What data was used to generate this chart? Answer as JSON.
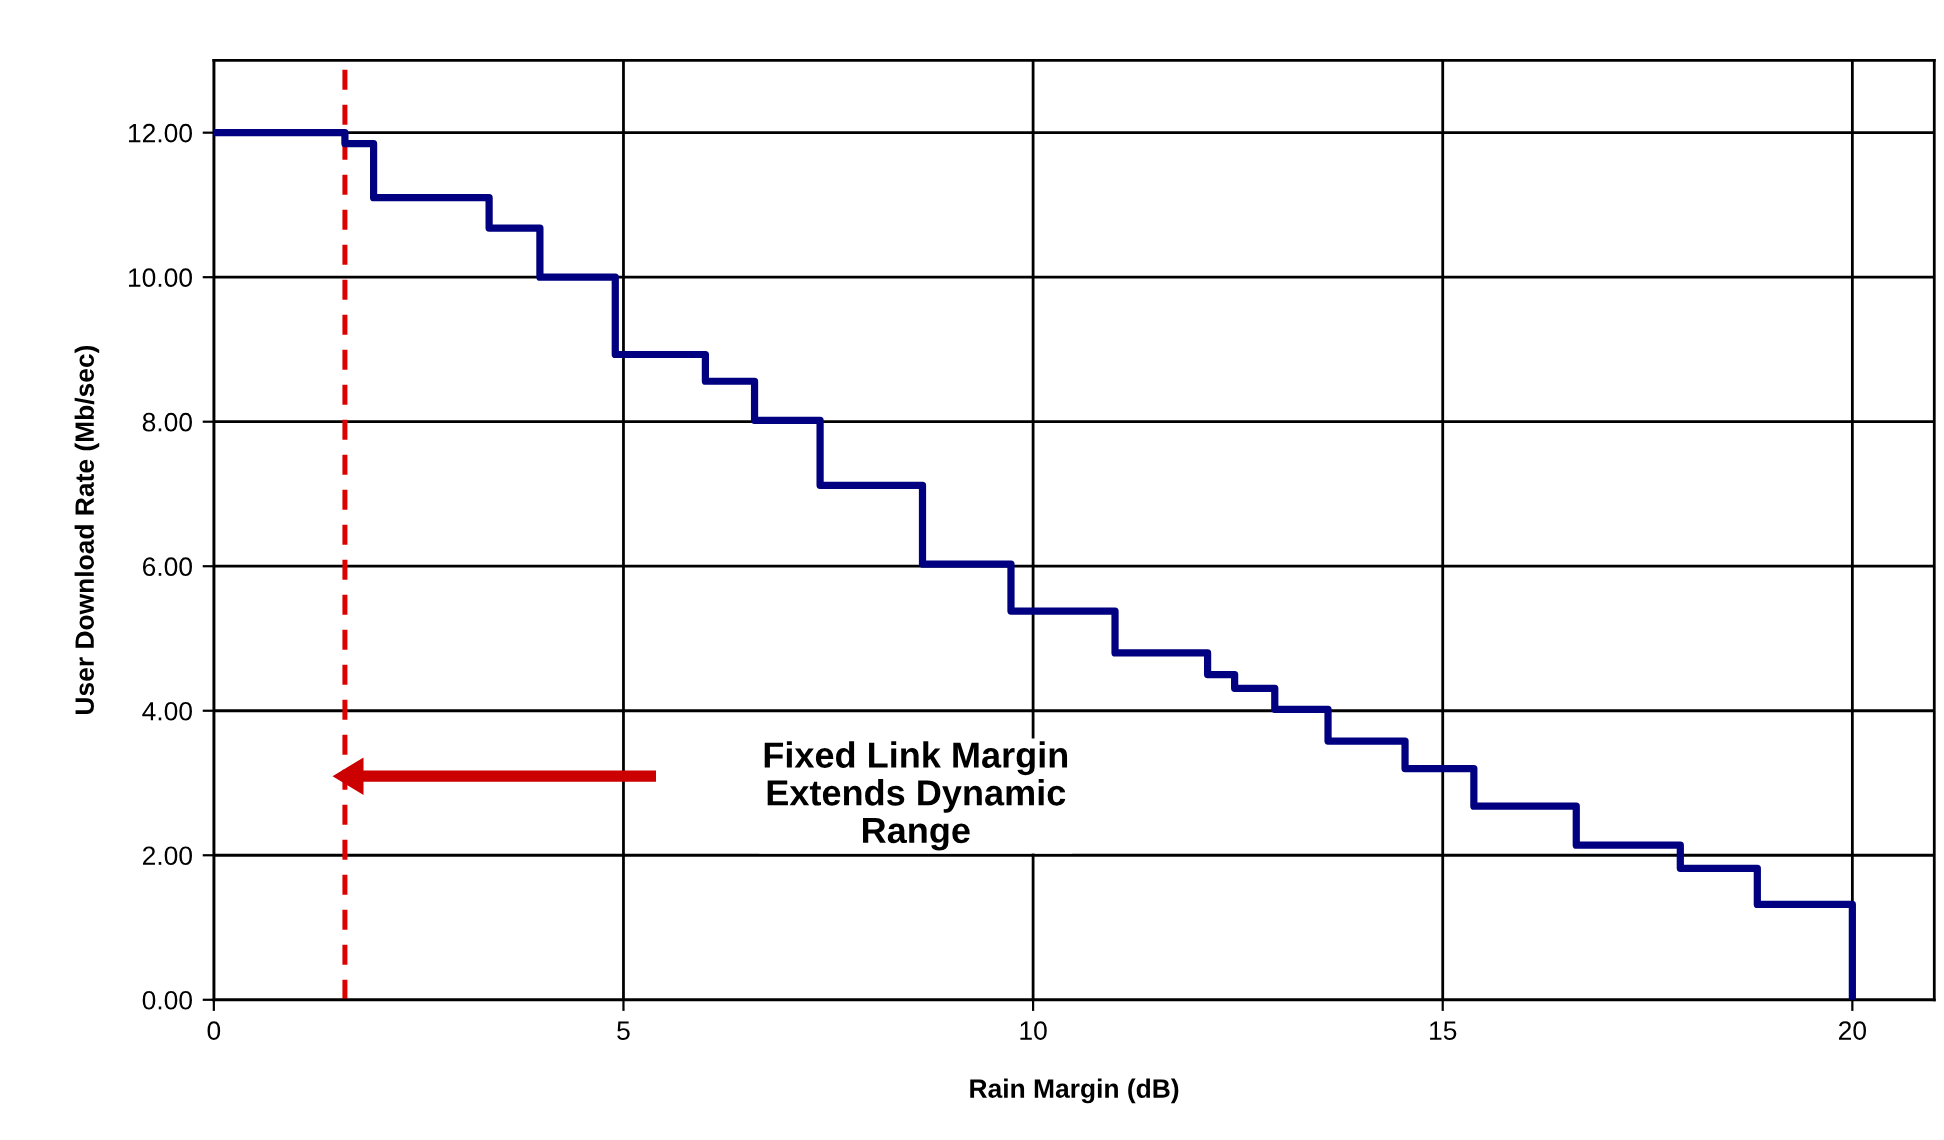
{
  "chart_data": {
    "type": "step",
    "xlabel": "Rain Margin (dB)",
    "ylabel": "User Download Rate (Mb/sec)",
    "x": [
      0,
      1.6,
      1.95,
      3.36,
      3.98,
      4.9,
      6.0,
      6.6,
      7.4,
      8.65,
      9.73,
      11.0,
      12.13,
      12.46,
      12.95,
      13.6,
      14.54,
      15.38,
      16.63,
      17.9,
      18.84,
      20
    ],
    "series": [
      {
        "color": "#000080",
        "values": [
          12,
          11.85,
          11.1,
          10.68,
          10,
          8.93,
          8.56,
          8.02,
          7.12,
          6.03,
          5.38,
          4.8,
          4.5,
          4.31,
          4.02,
          3.58,
          3.2,
          2.68,
          2.14,
          1.82,
          1.32,
          0
        ]
      }
    ],
    "xlim": [
      0,
      21
    ],
    "xticks": [
      0,
      5,
      10,
      15,
      20
    ],
    "ylim": [
      0,
      13
    ],
    "yticks": [
      {
        "value": 0,
        "label": "0.00"
      },
      {
        "value": 2,
        "label": "2.00"
      },
      {
        "value": 4,
        "label": "4.00"
      },
      {
        "value": 6,
        "label": "6.00"
      },
      {
        "value": 8,
        "label": "8.00"
      },
      {
        "value": 10,
        "label": "10.00"
      },
      {
        "value": 12,
        "label": "12.00"
      }
    ],
    "grid": true,
    "ref_lines": [
      {
        "axis": "x",
        "value": 1.6,
        "color": "#dd0000",
        "line_style": "dashed"
      }
    ],
    "annotations": [
      "Fixed Link Margin\nExtends Dynamic\nRange"
    ]
  }
}
